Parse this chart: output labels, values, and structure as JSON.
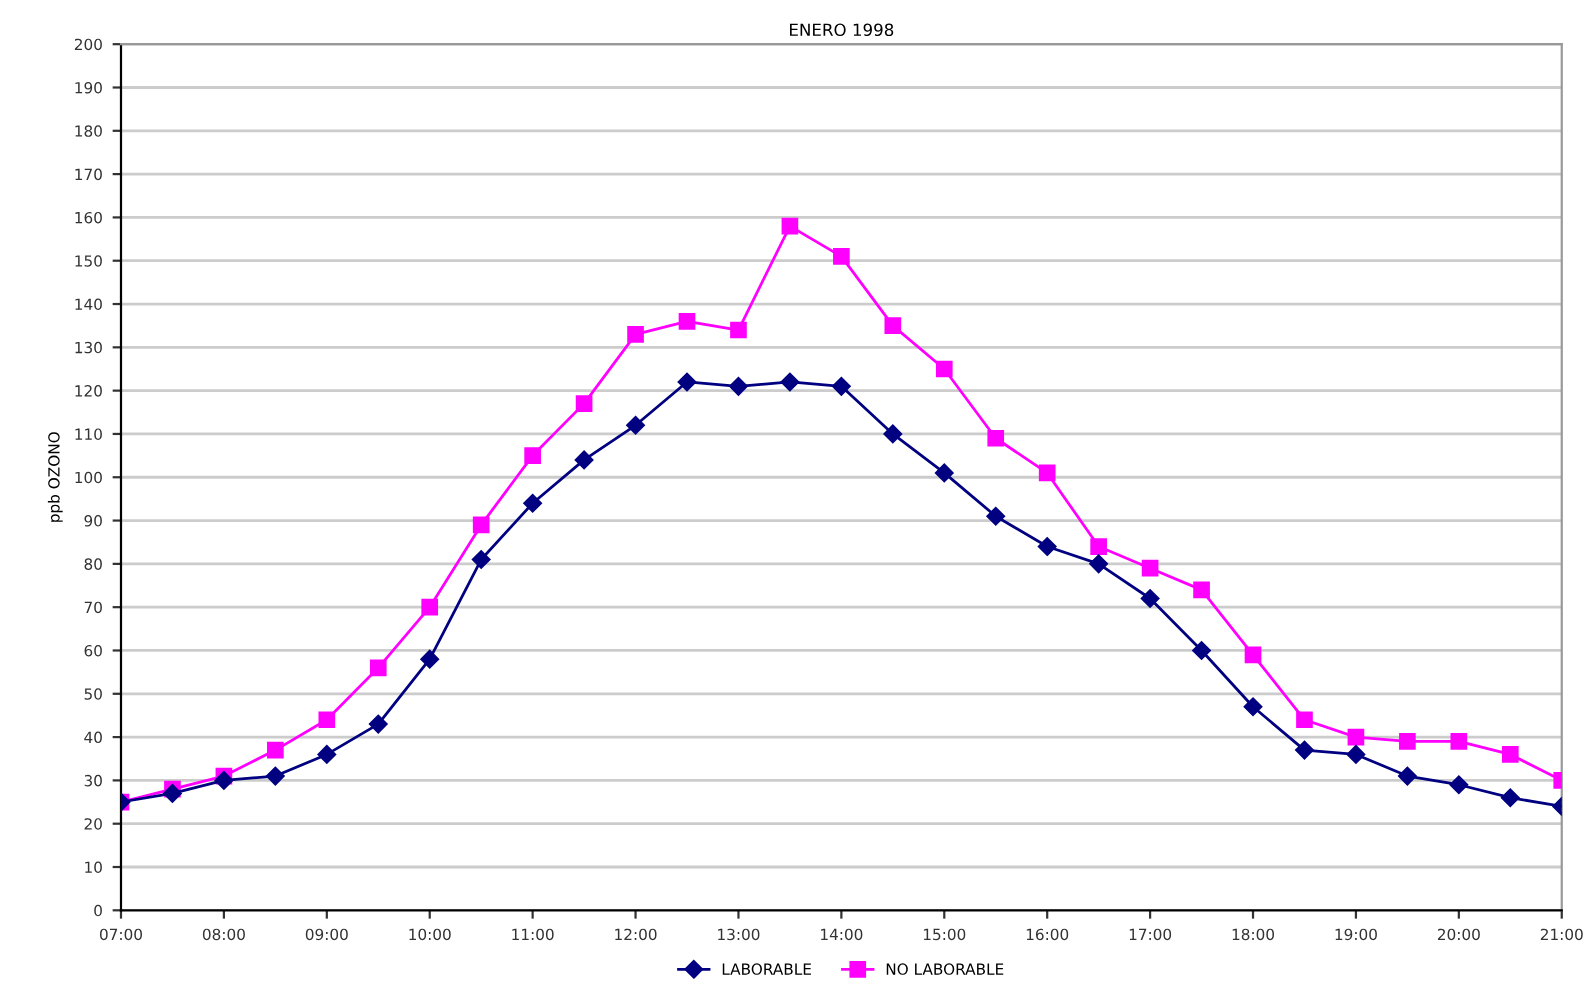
{
  "chart_data": {
    "type": "line",
    "title": "ENERO 1998",
    "ylabel": "ppb OZONO",
    "x": [
      7,
      7.5,
      8,
      8.5,
      9,
      9.5,
      10,
      10.5,
      11,
      11.5,
      12,
      12.5,
      13,
      13.5,
      14,
      14.5,
      15,
      15.5,
      16,
      16.5,
      17,
      17.5,
      18,
      18.5,
      19,
      19.5,
      20,
      20.5,
      21
    ],
    "series": [
      {
        "name": "LABORABLE",
        "color": "#000080",
        "marker": "diamond",
        "values": [
          25,
          27,
          30,
          31,
          36,
          43,
          58,
          81,
          94,
          104,
          112,
          122,
          121,
          122,
          121,
          110,
          101,
          91,
          84,
          80,
          72,
          60,
          47,
          37,
          36,
          31,
          29,
          26,
          24
        ]
      },
      {
        "name": "NO LABORABLE",
        "color": "#ff00ff",
        "marker": "square",
        "values": [
          25,
          28,
          31,
          37,
          44,
          56,
          70,
          89,
          105,
          117,
          133,
          136,
          134,
          158,
          151,
          135,
          125,
          109,
          101,
          84,
          79,
          74,
          59,
          44,
          40,
          39,
          39,
          36,
          30
        ]
      }
    ],
    "xlim": [
      7,
      21
    ],
    "xticks": [
      {
        "value": 7,
        "label": "07:00"
      },
      {
        "value": 8,
        "label": "08:00"
      },
      {
        "value": 9,
        "label": "09:00"
      },
      {
        "value": 10,
        "label": "10:00"
      },
      {
        "value": 11,
        "label": "11:00"
      },
      {
        "value": 12,
        "label": "12:00"
      },
      {
        "value": 13,
        "label": "13:00"
      },
      {
        "value": 14,
        "label": "14:00"
      },
      {
        "value": 15,
        "label": "15:00"
      },
      {
        "value": 16,
        "label": "16:00"
      },
      {
        "value": 17,
        "label": "17:00"
      },
      {
        "value": 18,
        "label": "18:00"
      },
      {
        "value": 19,
        "label": "19:00"
      },
      {
        "value": 20,
        "label": "20:00"
      },
      {
        "value": 21,
        "label": "21:00"
      }
    ],
    "ylim": [
      0,
      200
    ],
    "yticks": [
      0,
      10,
      20,
      30,
      40,
      50,
      60,
      70,
      80,
      90,
      100,
      110,
      120,
      130,
      140,
      150,
      160,
      170,
      180,
      190,
      200
    ],
    "grid": "y",
    "legend": "bottom",
    "line_style": "solid"
  }
}
